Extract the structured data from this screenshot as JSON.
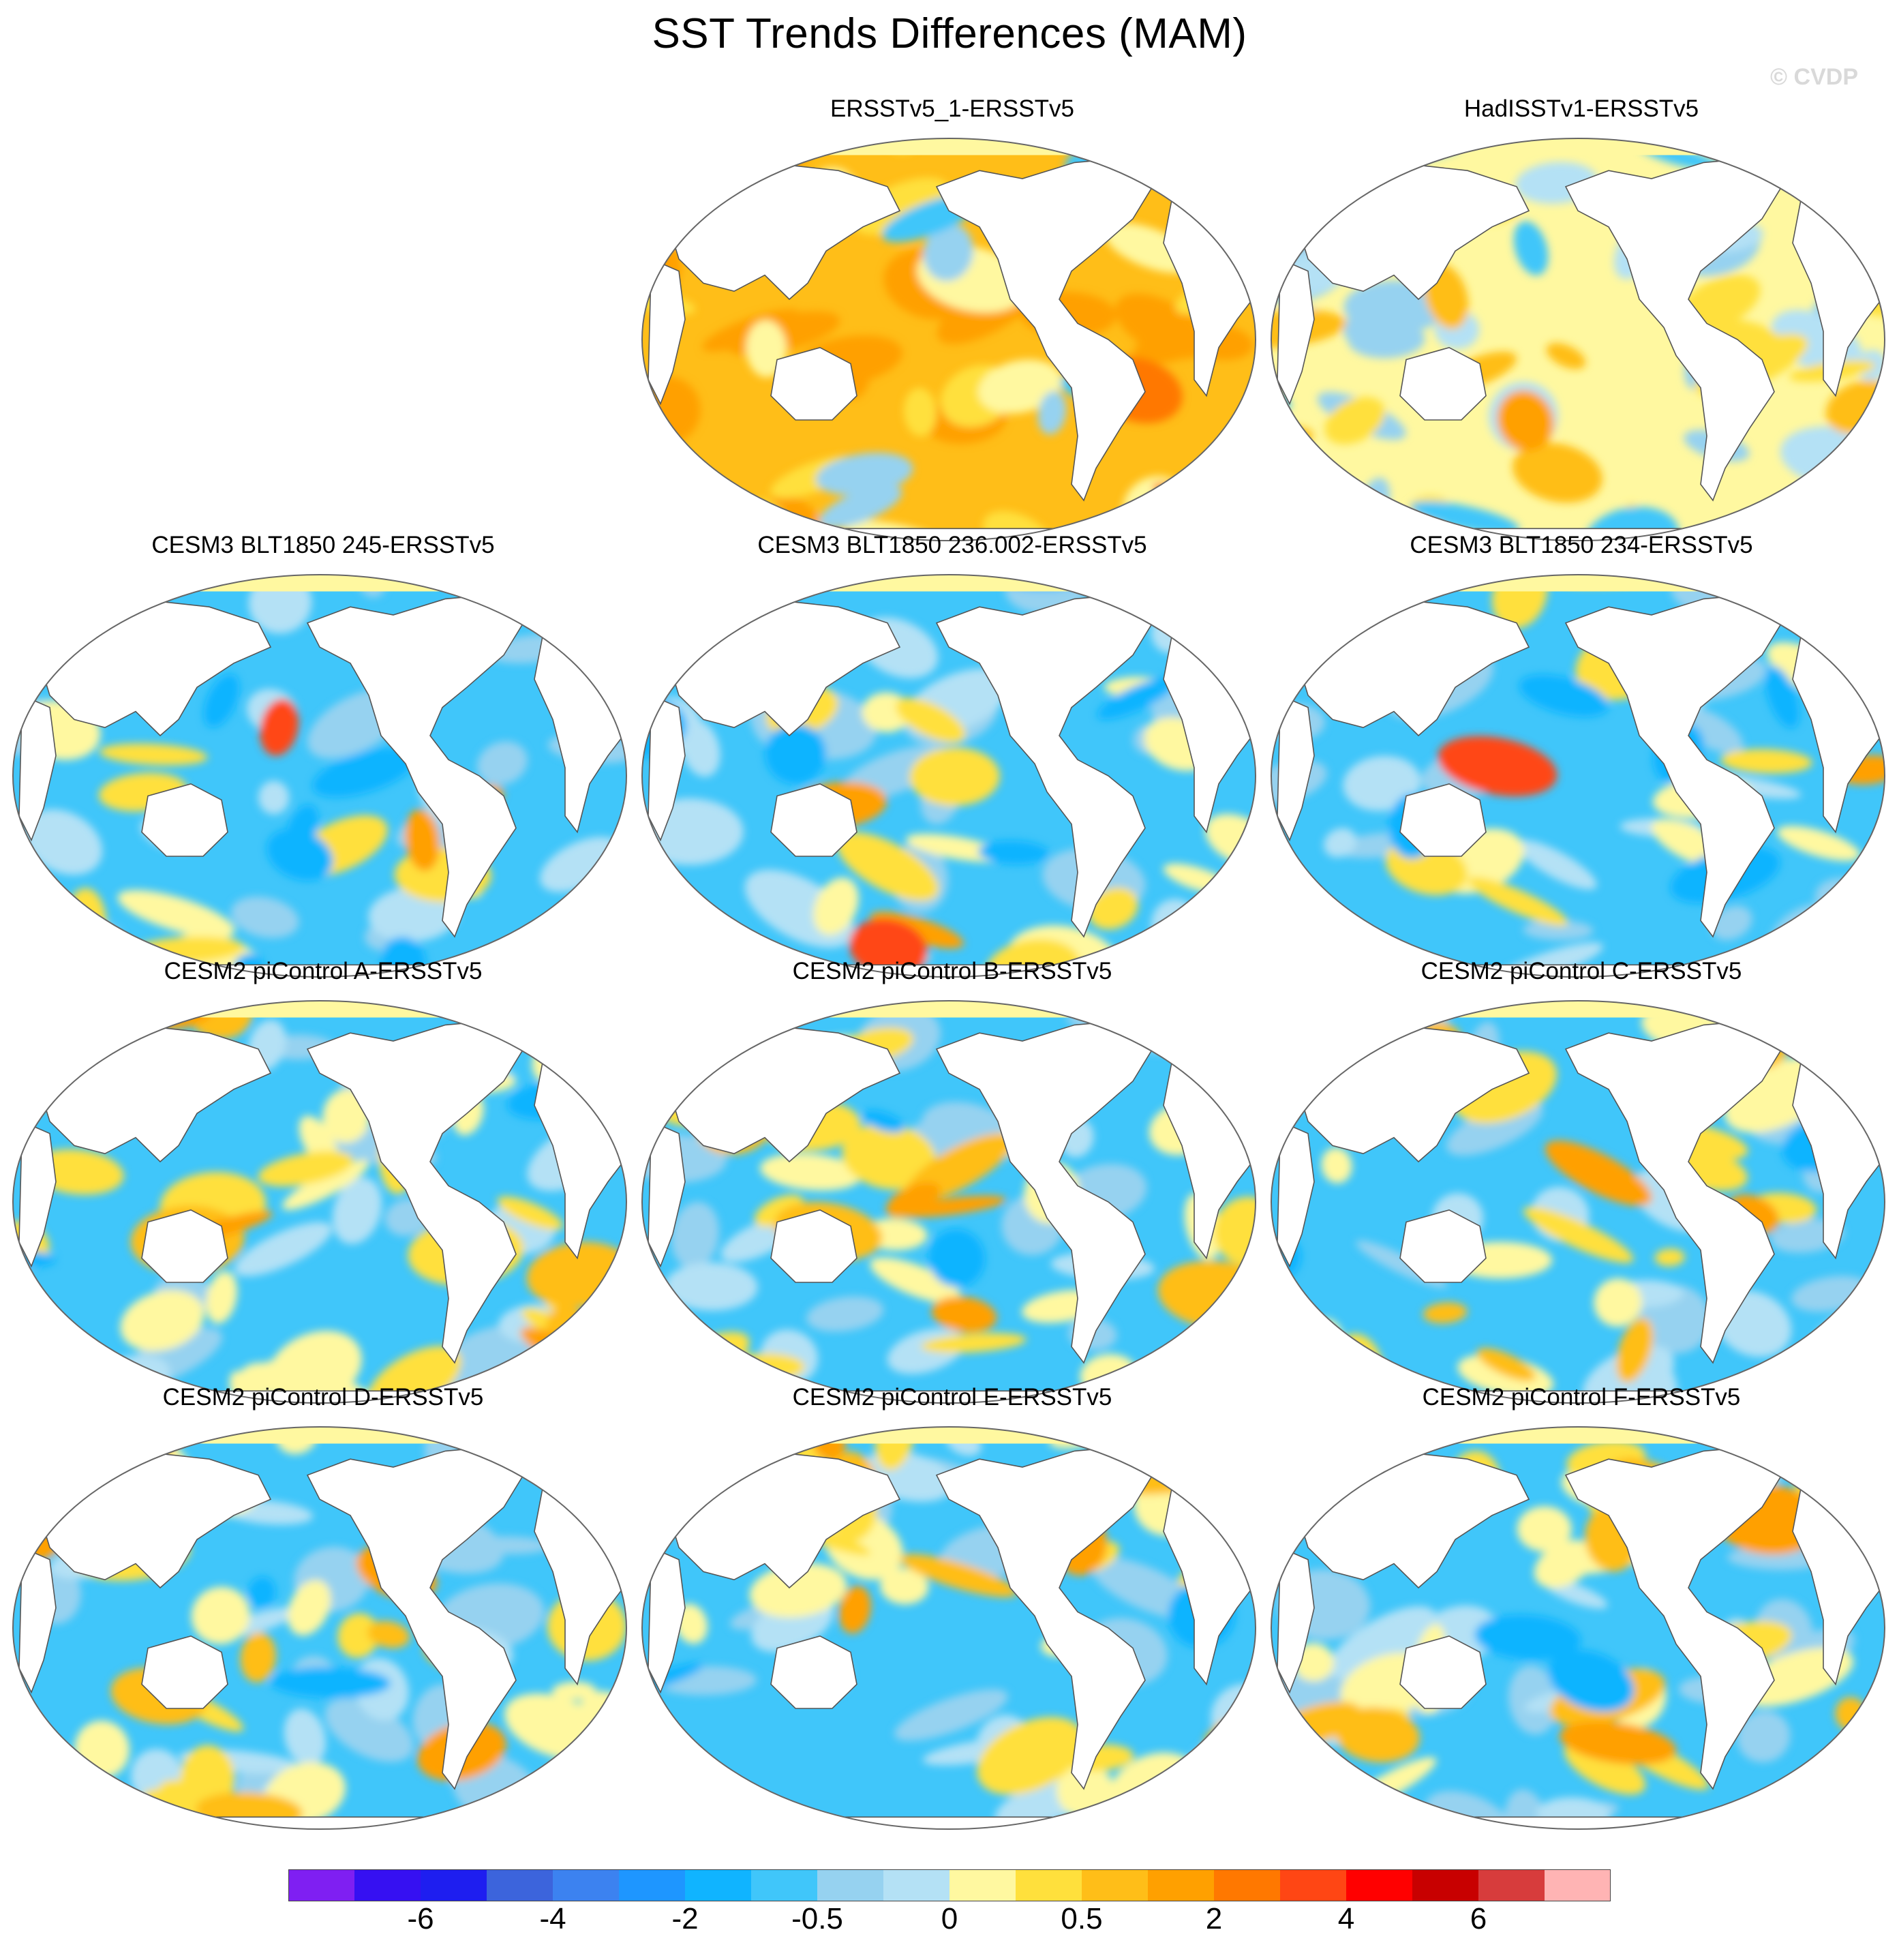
{
  "title": "SST Trends Differences (MAM)",
  "credit": "© CVDP",
  "colorbar": {
    "colors": [
      "#7f1ff2",
      "#3610f2",
      "#1e1ef0",
      "#3c64dc",
      "#3c82f0",
      "#1e96ff",
      "#10b4ff",
      "#40c6fa",
      "#96d2f0",
      "#b4e1f5",
      "#fff8a0",
      "#ffe03c",
      "#ffbe18",
      "#ffa000",
      "#ff7800",
      "#ff4614",
      "#ff0000",
      "#c80000",
      "#d73c3c",
      "#ffb4b4"
    ],
    "tick_labels": [
      "-6",
      "-4",
      "-2",
      "-0.5",
      "0",
      "0.5",
      "2",
      "4",
      "6"
    ]
  },
  "panels": [
    {
      "label": "ERSST v5_1-ERSST v5",
      "text": "ERSSTv5_1-ERSSTv5",
      "tone": "warm"
    },
    {
      "label": "HadISST v1-ERSST v5",
      "text": "HadISSTv1-ERSSTv5",
      "tone": "mixed"
    },
    {
      "label": "CESM3 BLT1850 245",
      "text": "CESM3 BLT1850 245-ERSSTv5",
      "tone": "cool"
    },
    {
      "label": "CESM3 BLT1850 236.002",
      "text": "CESM3 BLT1850 236.002-ERSSTv5",
      "tone": "cool"
    },
    {
      "label": "CESM3 BLT1850 234",
      "text": "CESM3 BLT1850 234-ERSSTv5",
      "tone": "cool"
    },
    {
      "label": "CESM2 piControl A",
      "text": "CESM2 piControl A-ERSSTv5",
      "tone": "coolmix"
    },
    {
      "label": "CESM2 piControl B",
      "text": "CESM2 piControl B-ERSSTv5",
      "tone": "coolmix"
    },
    {
      "label": "CESM2 piControl C",
      "text": "CESM2 piControl C-ERSSTv5",
      "tone": "coolmix"
    },
    {
      "label": "CESM2 piControl D",
      "text": "CESM2 piControl D-ERSSTv5",
      "tone": "coolmix"
    },
    {
      "label": "CESM2 piControl E",
      "text": "CESM2 piControl E-ERSSTv5",
      "tone": "coolmix"
    },
    {
      "label": "CESM2 piControl F",
      "text": "CESM2 piControl F-ERSSTv5",
      "tone": "coolmix"
    }
  ]
}
